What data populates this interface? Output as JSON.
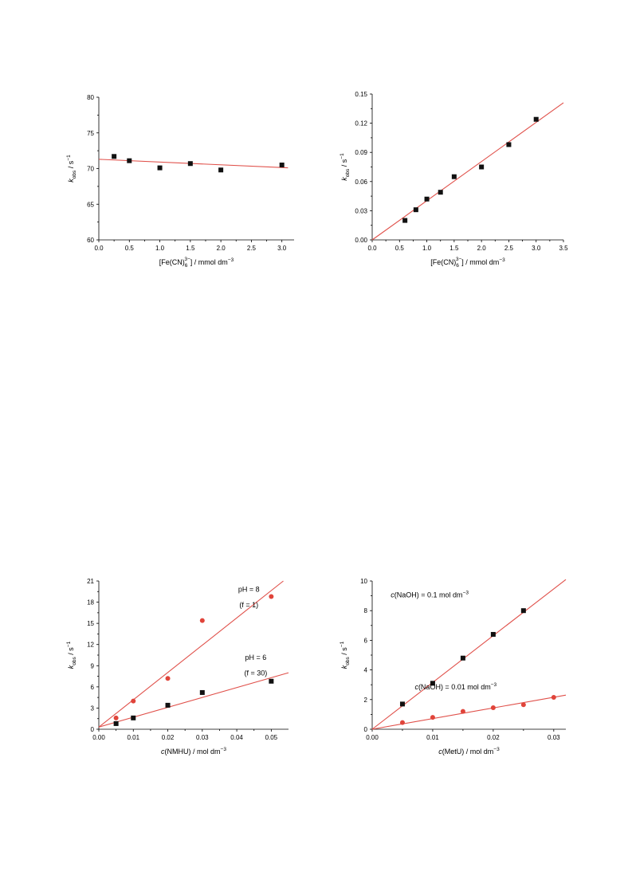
{
  "colors": {
    "fit_line": "#e0504a",
    "square_marker": "#111111",
    "circle_marker": "#e0443a",
    "axis": "#000000"
  },
  "chart_data": [
    {
      "id": "chart-1",
      "type": "scatter",
      "xlim": [
        0,
        3.2
      ],
      "ylim": [
        60,
        80
      ],
      "xticks": [
        0,
        0.5,
        1.0,
        1.5,
        2.0,
        2.5,
        3.0
      ],
      "xtick_labels": [
        "0.0",
        "0.5",
        "1.0",
        "1.5",
        "2.0",
        "2.5",
        "3.0"
      ],
      "yticks": [
        60,
        65,
        70,
        75,
        80
      ],
      "ytick_labels": [
        "60",
        "65",
        "70",
        "75",
        "80"
      ],
      "xlabel": "[Fe(CN)6 3−] / mmol dm−3",
      "xlabel_parts": {
        "pre": "[Fe(CN)",
        "sub": "6",
        "sup": "3−",
        "post": "] / mmol dm",
        "unit_sup": "−3"
      },
      "ylabel": "k obs / s−1",
      "ylabel_parts": {
        "main": "k",
        "sub": "obs",
        "unit": " / s",
        "sup": "−1"
      },
      "series": [
        {
          "marker": "square",
          "x": [
            0.25,
            0.5,
            1.0,
            1.5,
            2.0,
            3.0
          ],
          "y": [
            71.7,
            71.1,
            70.1,
            70.7,
            69.8,
            70.5
          ]
        }
      ],
      "fit_lines": [
        {
          "x": [
            0.0,
            3.1
          ],
          "y": [
            71.3,
            70.1
          ]
        }
      ],
      "annotations": []
    },
    {
      "id": "chart-2",
      "type": "scatter",
      "xlim": [
        0,
        3.5
      ],
      "ylim": [
        0,
        0.15
      ],
      "xticks": [
        0,
        0.5,
        1.0,
        1.5,
        2.0,
        2.5,
        3.0,
        3.5
      ],
      "xtick_labels": [
        "0.0",
        "0.5",
        "1.0",
        "1.5",
        "2.0",
        "2.5",
        "3.0",
        "3.5"
      ],
      "yticks": [
        0,
        0.03,
        0.06,
        0.09,
        0.12,
        0.15
      ],
      "ytick_labels": [
        "0.00",
        "0.03",
        "0.06",
        "0.09",
        "0.12",
        "0.15"
      ],
      "xlabel": "[Fe(CN)6 3−] / mmol dm−3",
      "xlabel_parts": {
        "pre": "[Fe(CN)",
        "sub": "6",
        "sup": "3−",
        "post": "] / mmol dm",
        "unit_sup": "−3"
      },
      "ylabel": "k obs / s−1",
      "ylabel_parts": {
        "main": "k",
        "sub": "obs",
        "unit": " / s",
        "sup": "−1"
      },
      "series": [
        {
          "marker": "square",
          "x": [
            0.6,
            0.8,
            1.0,
            1.25,
            1.5,
            2.0,
            2.5,
            3.0
          ],
          "y": [
            0.02,
            0.031,
            0.042,
            0.049,
            0.065,
            0.075,
            0.098,
            0.124
          ]
        }
      ],
      "fit_lines": [
        {
          "x": [
            0.0,
            3.5
          ],
          "y": [
            0.0,
            0.141
          ]
        }
      ],
      "annotations": []
    },
    {
      "id": "chart-3",
      "type": "scatter",
      "xlim": [
        0,
        0.055
      ],
      "ylim": [
        0,
        21
      ],
      "xticks": [
        0,
        0.01,
        0.02,
        0.03,
        0.04,
        0.05
      ],
      "xtick_labels": [
        "0.00",
        "0.01",
        "0.02",
        "0.03",
        "0.04",
        "0.05"
      ],
      "yticks": [
        0,
        3,
        6,
        9,
        12,
        15,
        18,
        21
      ],
      "ytick_labels": [
        "0",
        "3",
        "6",
        "9",
        "12",
        "15",
        "18",
        "21"
      ],
      "xlabel": "c(NMHU) / mol dm−3",
      "xlabel_parts": {
        "italic": "c",
        "post": "(NMHU) / mol dm",
        "unit_sup": "−3"
      },
      "ylabel": "k obs / s−1",
      "ylabel_parts": {
        "main": "k",
        "sub": "obs",
        "unit": " / s",
        "sup": "−1"
      },
      "series": [
        {
          "marker": "circle",
          "x": [
            0.005,
            0.01,
            0.02,
            0.03,
            0.05
          ],
          "y": [
            1.6,
            4.0,
            7.2,
            15.4,
            18.8
          ]
        },
        {
          "marker": "square",
          "x": [
            0.005,
            0.01,
            0.02,
            0.03,
            0.05
          ],
          "y": [
            0.8,
            1.6,
            3.4,
            5.2,
            6.8
          ]
        }
      ],
      "fit_lines": [
        {
          "x": [
            0.0,
            0.0535
          ],
          "y": [
            0.3,
            21.0
          ]
        },
        {
          "x": [
            0.0,
            0.055
          ],
          "y": [
            0.3,
            8.0
          ]
        }
      ],
      "annotations": [
        {
          "text": "pH = 8",
          "x": 0.0435,
          "y": 19.5
        },
        {
          "text": "(f = 1)",
          "x": 0.0435,
          "y": 17.3
        },
        {
          "text": "pH = 6",
          "x": 0.0455,
          "y": 9.8
        },
        {
          "text": "(f = 30)",
          "x": 0.0455,
          "y": 7.6
        }
      ]
    },
    {
      "id": "chart-4",
      "type": "scatter",
      "xlim": [
        0,
        0.032
      ],
      "ylim": [
        0,
        10
      ],
      "xticks": [
        0,
        0.01,
        0.02,
        0.03
      ],
      "xtick_labels": [
        "0.00",
        "0.01",
        "0.02",
        "0.03"
      ],
      "yticks": [
        0,
        2,
        4,
        6,
        8,
        10
      ],
      "ytick_labels": [
        "0",
        "2",
        "4",
        "6",
        "8",
        "10"
      ],
      "xlabel": "c(MetU) / mol dm−3",
      "xlabel_parts": {
        "italic": "c",
        "post": "(MetU) / mol dm",
        "unit_sup": "−3"
      },
      "ylabel": "k obs / s−1",
      "ylabel_parts": {
        "main": "k",
        "sub": "obs",
        "unit": " / s",
        "sup": "−1"
      },
      "series": [
        {
          "marker": "square",
          "x": [
            0.005,
            0.01,
            0.015,
            0.02,
            0.025
          ],
          "y": [
            1.7,
            3.1,
            4.8,
            6.4,
            8.0
          ]
        },
        {
          "marker": "circle",
          "x": [
            0.005,
            0.01,
            0.015,
            0.02,
            0.025,
            0.03
          ],
          "y": [
            0.45,
            0.8,
            1.2,
            1.45,
            1.65,
            2.15
          ]
        }
      ],
      "fit_lines": [
        {
          "x": [
            0.0,
            0.032
          ],
          "y": [
            0.0,
            10.1
          ]
        },
        {
          "x": [
            0.0,
            0.032
          ],
          "y": [
            0.0,
            2.3
          ]
        }
      ],
      "annotations": [
        {
          "text_italic": "c",
          "text": "(NaOH) = 0.1 mol dm",
          "sup": "−3",
          "x": 0.0095,
          "y": 8.9
        },
        {
          "text_italic": "c",
          "text": "(NaOH) = 0.01 mol dm",
          "sup": "−3",
          "x": 0.0138,
          "y": 2.7
        }
      ]
    }
  ]
}
